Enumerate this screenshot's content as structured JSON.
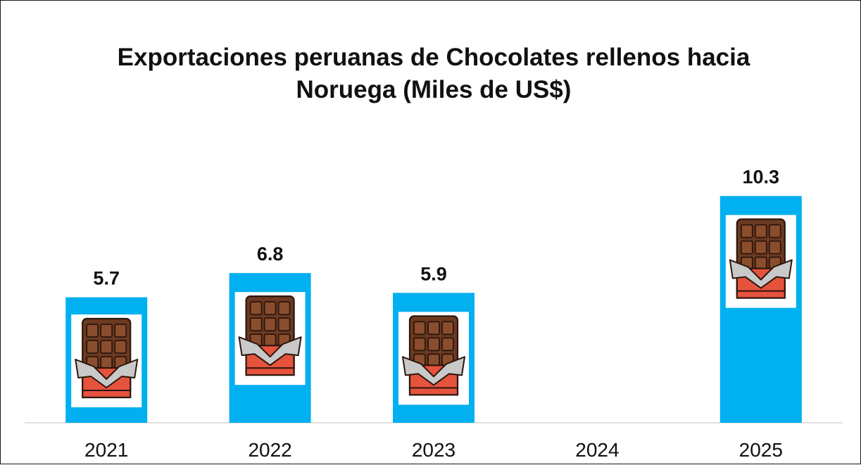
{
  "chart_data": {
    "type": "bar",
    "title": "Exportaciones peruanas de Chocolates rellenos hacia\nNoruega (Miles de US$)",
    "categories": [
      "2021",
      "2022",
      "2023",
      "2024",
      "2025"
    ],
    "values": [
      5.7,
      6.8,
      5.9,
      null,
      10.3
    ],
    "data_labels": [
      "5.7",
      "6.8",
      "5.9",
      "",
      "10.3"
    ],
    "xlabel": "",
    "ylabel": "",
    "ylim": [
      0,
      11
    ],
    "grid": false,
    "legend": "none",
    "bar_color": "#00B0F0",
    "bar_icon": "chocolate-bar-icon"
  }
}
